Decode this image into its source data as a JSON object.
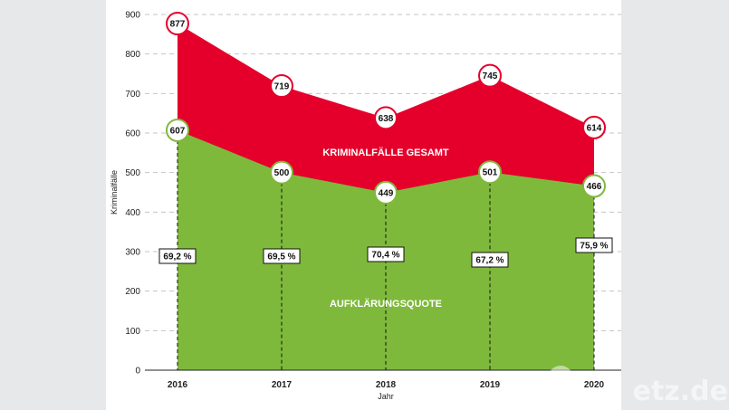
{
  "chart_data": {
    "type": "area",
    "categories": [
      "2016",
      "2017",
      "2018",
      "2019",
      "2020"
    ],
    "series": [
      {
        "name": "KRIMINALFÄLLE GESAMT",
        "values": [
          877,
          719,
          638,
          745,
          614
        ],
        "color": "#e4002b"
      },
      {
        "name": "AUFKLÄRUNGSQUOTE",
        "values": [
          607,
          500,
          449,
          501,
          466
        ],
        "color": "#7fb93c"
      }
    ],
    "rates": [
      "69,2 %",
      "69,5 %",
      "70,4 %",
      "67,2 %",
      "75,9 %"
    ],
    "xlabel": "Jahr",
    "ylabel": "Kriminalfälle",
    "ylim": [
      0,
      900
    ],
    "yticks": [
      0,
      100,
      200,
      300,
      400,
      500,
      600,
      700,
      800,
      900
    ],
    "grid": true
  },
  "watermark": {
    "text": "etz.de"
  }
}
